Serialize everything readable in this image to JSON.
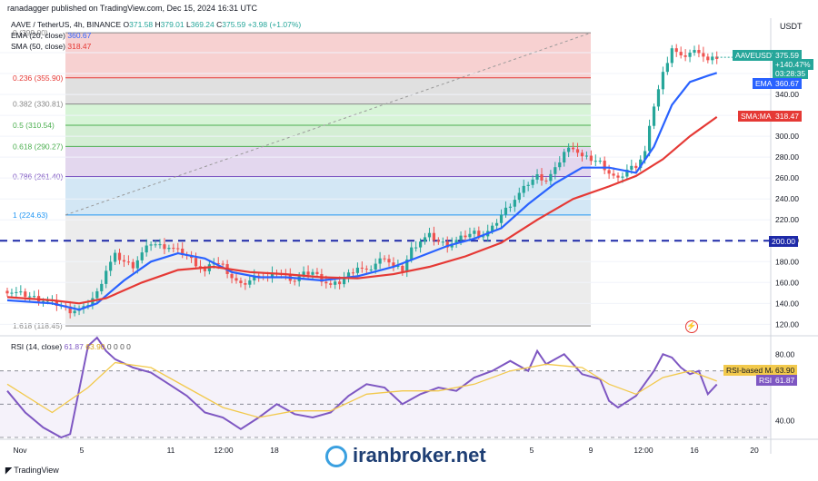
{
  "header": {
    "published": "ranadagger published on TradingView.com, Dec 15, 2024 16:31 UTC",
    "currency": "USDT"
  },
  "legend": {
    "symbol": "AAVE / TetherUS, 4h, BINANCE",
    "ohlc_o_label": "O",
    "ohlc_o": "371.58",
    "ohlc_h_label": "H",
    "ohlc_h": "379.01",
    "ohlc_l_label": "L",
    "ohlc_l": "369.24",
    "ohlc_c_label": "C",
    "ohlc_c": "375.59",
    "change": "+3.98 (+1.07%)",
    "ema_label": "EMA (20, close)",
    "ema_value": "360.67",
    "sma_label": "SMA (50, close)",
    "sma_value": "318.47",
    "rsi_label": "RSI (14, close)",
    "rsi_value": "61.87",
    "rsi_ma_value": "63.90",
    "rsi_extra": "0 0 0 0"
  },
  "tags": {
    "price_symbol": "AAVEUSDT",
    "price_value": "375.59",
    "price_change": "+140.47%",
    "price_timer": "03:28:35",
    "ema": "EMA",
    "ema_value": "360.67",
    "sma": "SMA:MA",
    "sma_value": "318.47",
    "level_200": "200.00",
    "rsi_ma": "RSI-based MA",
    "rsi_ma_value": "63.90",
    "rsi": "RSI",
    "rsi_value": "61.87"
  },
  "fib_levels": [
    {
      "label": "0 (399.00)",
      "price": 399.0
    },
    {
      "label": "0.236 (355.90)",
      "price": 355.9
    },
    {
      "label": "0.382 (330.81)",
      "price": 330.81
    },
    {
      "label": "0.5 (310.54)",
      "price": 310.54
    },
    {
      "label": "0.618 (290.27)",
      "price": 290.27
    },
    {
      "label": "0.786 (261.40)",
      "price": 261.4
    },
    {
      "label": "1 (224.63)",
      "price": 224.63
    },
    {
      "label": "1.618 (118.45)",
      "price": 118.45
    }
  ],
  "watermark": "iranbroker.net",
  "tv_logo": "TradingView",
  "colors": {
    "up": "#26a69a",
    "down": "#ef5350",
    "ema": "#2962ff",
    "sma": "#e53935",
    "rsi": "#7e57c2",
    "rsi_ma": "#f2c94c",
    "level": "#1e2aa8"
  },
  "chart_data": [
    {
      "type": "candlestick",
      "title": "AAVE / TetherUS, 4h, BINANCE",
      "x_tick_labels": [
        "Nov",
        "5",
        "11",
        "12:00",
        "18",
        "5",
        "9",
        "12:00",
        "16",
        "20"
      ],
      "y_tick_labels": [
        "380.00",
        "360.00",
        "340.00",
        "320.00",
        "300.00",
        "280.00",
        "260.00",
        "240.00",
        "220.00",
        "200.00",
        "180.00",
        "160.00",
        "140.00",
        "120.00"
      ],
      "ylim": [
        109,
        400
      ],
      "horizontal_line": 200.0,
      "close_path": [
        [
          0,
          152
        ],
        [
          4,
          148
        ],
        [
          8,
          143
        ],
        [
          12,
          138
        ],
        [
          14,
          133
        ],
        [
          17,
          135
        ],
        [
          20,
          150
        ],
        [
          22,
          172
        ],
        [
          24,
          186
        ],
        [
          26,
          180
        ],
        [
          28,
          176
        ],
        [
          30,
          188
        ],
        [
          32,
          198
        ],
        [
          34,
          195
        ],
        [
          36,
          194
        ],
        [
          38,
          190
        ],
        [
          40,
          186
        ],
        [
          42,
          178
        ],
        [
          44,
          170
        ],
        [
          46,
          180
        ],
        [
          48,
          176
        ],
        [
          50,
          165
        ],
        [
          52,
          157
        ],
        [
          54,
          162
        ],
        [
          56,
          168
        ],
        [
          58,
          164
        ],
        [
          60,
          170
        ],
        [
          62,
          166
        ],
        [
          64,
          162
        ],
        [
          66,
          168
        ],
        [
          68,
          170
        ],
        [
          70,
          163
        ],
        [
          72,
          157
        ],
        [
          74,
          160
        ],
        [
          76,
          168
        ],
        [
          78,
          175
        ],
        [
          80,
          170
        ],
        [
          82,
          178
        ],
        [
          84,
          185
        ],
        [
          86,
          175
        ],
        [
          88,
          172
        ],
        [
          90,
          192
        ],
        [
          92,
          200
        ],
        [
          94,
          205
        ],
        [
          96,
          199
        ],
        [
          98,
          196
        ],
        [
          100,
          200
        ],
        [
          102,
          205
        ],
        [
          104,
          208
        ],
        [
          106,
          205
        ],
        [
          108,
          212
        ],
        [
          110,
          225
        ],
        [
          112,
          235
        ],
        [
          114,
          245
        ],
        [
          116,
          255
        ],
        [
          118,
          262
        ],
        [
          120,
          258
        ],
        [
          122,
          268
        ],
        [
          124,
          285
        ],
        [
          126,
          290
        ],
        [
          128,
          280
        ],
        [
          130,
          278
        ],
        [
          132,
          275
        ],
        [
          134,
          265
        ],
        [
          136,
          258
        ],
        [
          138,
          268
        ],
        [
          140,
          272
        ],
        [
          142,
          285
        ],
        [
          144,
          330
        ],
        [
          146,
          360
        ],
        [
          148,
          385
        ],
        [
          150,
          375
        ],
        [
          152,
          380
        ],
        [
          154,
          382
        ],
        [
          156,
          372
        ],
        [
          158,
          375.59
        ]
      ],
      "series": [
        {
          "name": "EMA (20, close)",
          "last": 360.67,
          "path": [
            [
              0,
              143
            ],
            [
              10,
              140
            ],
            [
              16,
              134
            ],
            [
              20,
              140
            ],
            [
              26,
              162
            ],
            [
              32,
              180
            ],
            [
              38,
              188
            ],
            [
              44,
              183
            ],
            [
              50,
              170
            ],
            [
              56,
              165
            ],
            [
              62,
              165
            ],
            [
              70,
              162
            ],
            [
              78,
              166
            ],
            [
              86,
              175
            ],
            [
              92,
              185
            ],
            [
              98,
              195
            ],
            [
              104,
              202
            ],
            [
              110,
              212
            ],
            [
              116,
              235
            ],
            [
              122,
              255
            ],
            [
              128,
              270
            ],
            [
              134,
              270
            ],
            [
              140,
              265
            ],
            [
              144,
              290
            ],
            [
              148,
              330
            ],
            [
              152,
              352
            ],
            [
              156,
              358
            ],
            [
              158,
              360.67
            ]
          ]
        },
        {
          "name": "SMA (50, close)",
          "last": 318.47,
          "path": [
            [
              0,
              146
            ],
            [
              10,
              143
            ],
            [
              16,
              140
            ],
            [
              22,
              145
            ],
            [
              30,
              160
            ],
            [
              38,
              172
            ],
            [
              46,
              175
            ],
            [
              54,
              170
            ],
            [
              62,
              168
            ],
            [
              70,
              165
            ],
            [
              78,
              164
            ],
            [
              86,
              168
            ],
            [
              94,
              175
            ],
            [
              102,
              185
            ],
            [
              110,
              198
            ],
            [
              118,
              220
            ],
            [
              126,
              240
            ],
            [
              134,
              252
            ],
            [
              140,
              262
            ],
            [
              146,
              278
            ],
            [
              152,
              300
            ],
            [
              158,
              318.47
            ]
          ]
        }
      ]
    },
    {
      "type": "line",
      "title": "RSI (14, close)",
      "y_tick_labels": [
        "80.00",
        "40.00"
      ],
      "ylim": [
        30,
        90
      ],
      "bands": [
        70,
        50,
        30
      ],
      "series": [
        {
          "name": "RSI",
          "last": 61.87,
          "path": [
            [
              0,
              58
            ],
            [
              4,
              45
            ],
            [
              8,
              36
            ],
            [
              12,
              28
            ],
            [
              14,
              32
            ],
            [
              18,
              85
            ],
            [
              20,
              92
            ],
            [
              22,
              82
            ],
            [
              24,
              77
            ],
            [
              28,
              72
            ],
            [
              32,
              69
            ],
            [
              36,
              62
            ],
            [
              40,
              55
            ],
            [
              44,
              45
            ],
            [
              48,
              42
            ],
            [
              52,
              35
            ],
            [
              56,
              42
            ],
            [
              60,
              50
            ],
            [
              64,
              44
            ],
            [
              68,
              42
            ],
            [
              72,
              45
            ],
            [
              76,
              55
            ],
            [
              80,
              62
            ],
            [
              84,
              60
            ],
            [
              88,
              50
            ],
            [
              92,
              56
            ],
            [
              96,
              60
            ],
            [
              100,
              58
            ],
            [
              104,
              66
            ],
            [
              108,
              70
            ],
            [
              112,
              76
            ],
            [
              116,
              70
            ],
            [
              118,
              82
            ],
            [
              120,
              74
            ],
            [
              124,
              80
            ],
            [
              128,
              68
            ],
            [
              132,
              65
            ],
            [
              134,
              52
            ],
            [
              136,
              48
            ],
            [
              140,
              55
            ],
            [
              144,
              70
            ],
            [
              146,
              80
            ],
            [
              148,
              78
            ],
            [
              150,
              72
            ],
            [
              152,
              68
            ],
            [
              154,
              70
            ],
            [
              156,
              56
            ],
            [
              158,
              61.87
            ]
          ]
        },
        {
          "name": "RSI-based MA",
          "last": 63.9,
          "path": [
            [
              0,
              62
            ],
            [
              10,
              45
            ],
            [
              18,
              60
            ],
            [
              24,
              75
            ],
            [
              32,
              72
            ],
            [
              40,
              60
            ],
            [
              48,
              48
            ],
            [
              56,
              42
            ],
            [
              64,
              46
            ],
            [
              72,
              46
            ],
            [
              80,
              56
            ],
            [
              88,
              58
            ],
            [
              96,
              58
            ],
            [
              104,
              62
            ],
            [
              112,
              70
            ],
            [
              120,
              74
            ],
            [
              128,
              72
            ],
            [
              134,
              62
            ],
            [
              140,
              56
            ],
            [
              146,
              66
            ],
            [
              152,
              70
            ],
            [
              158,
              63.9
            ]
          ]
        }
      ]
    }
  ]
}
